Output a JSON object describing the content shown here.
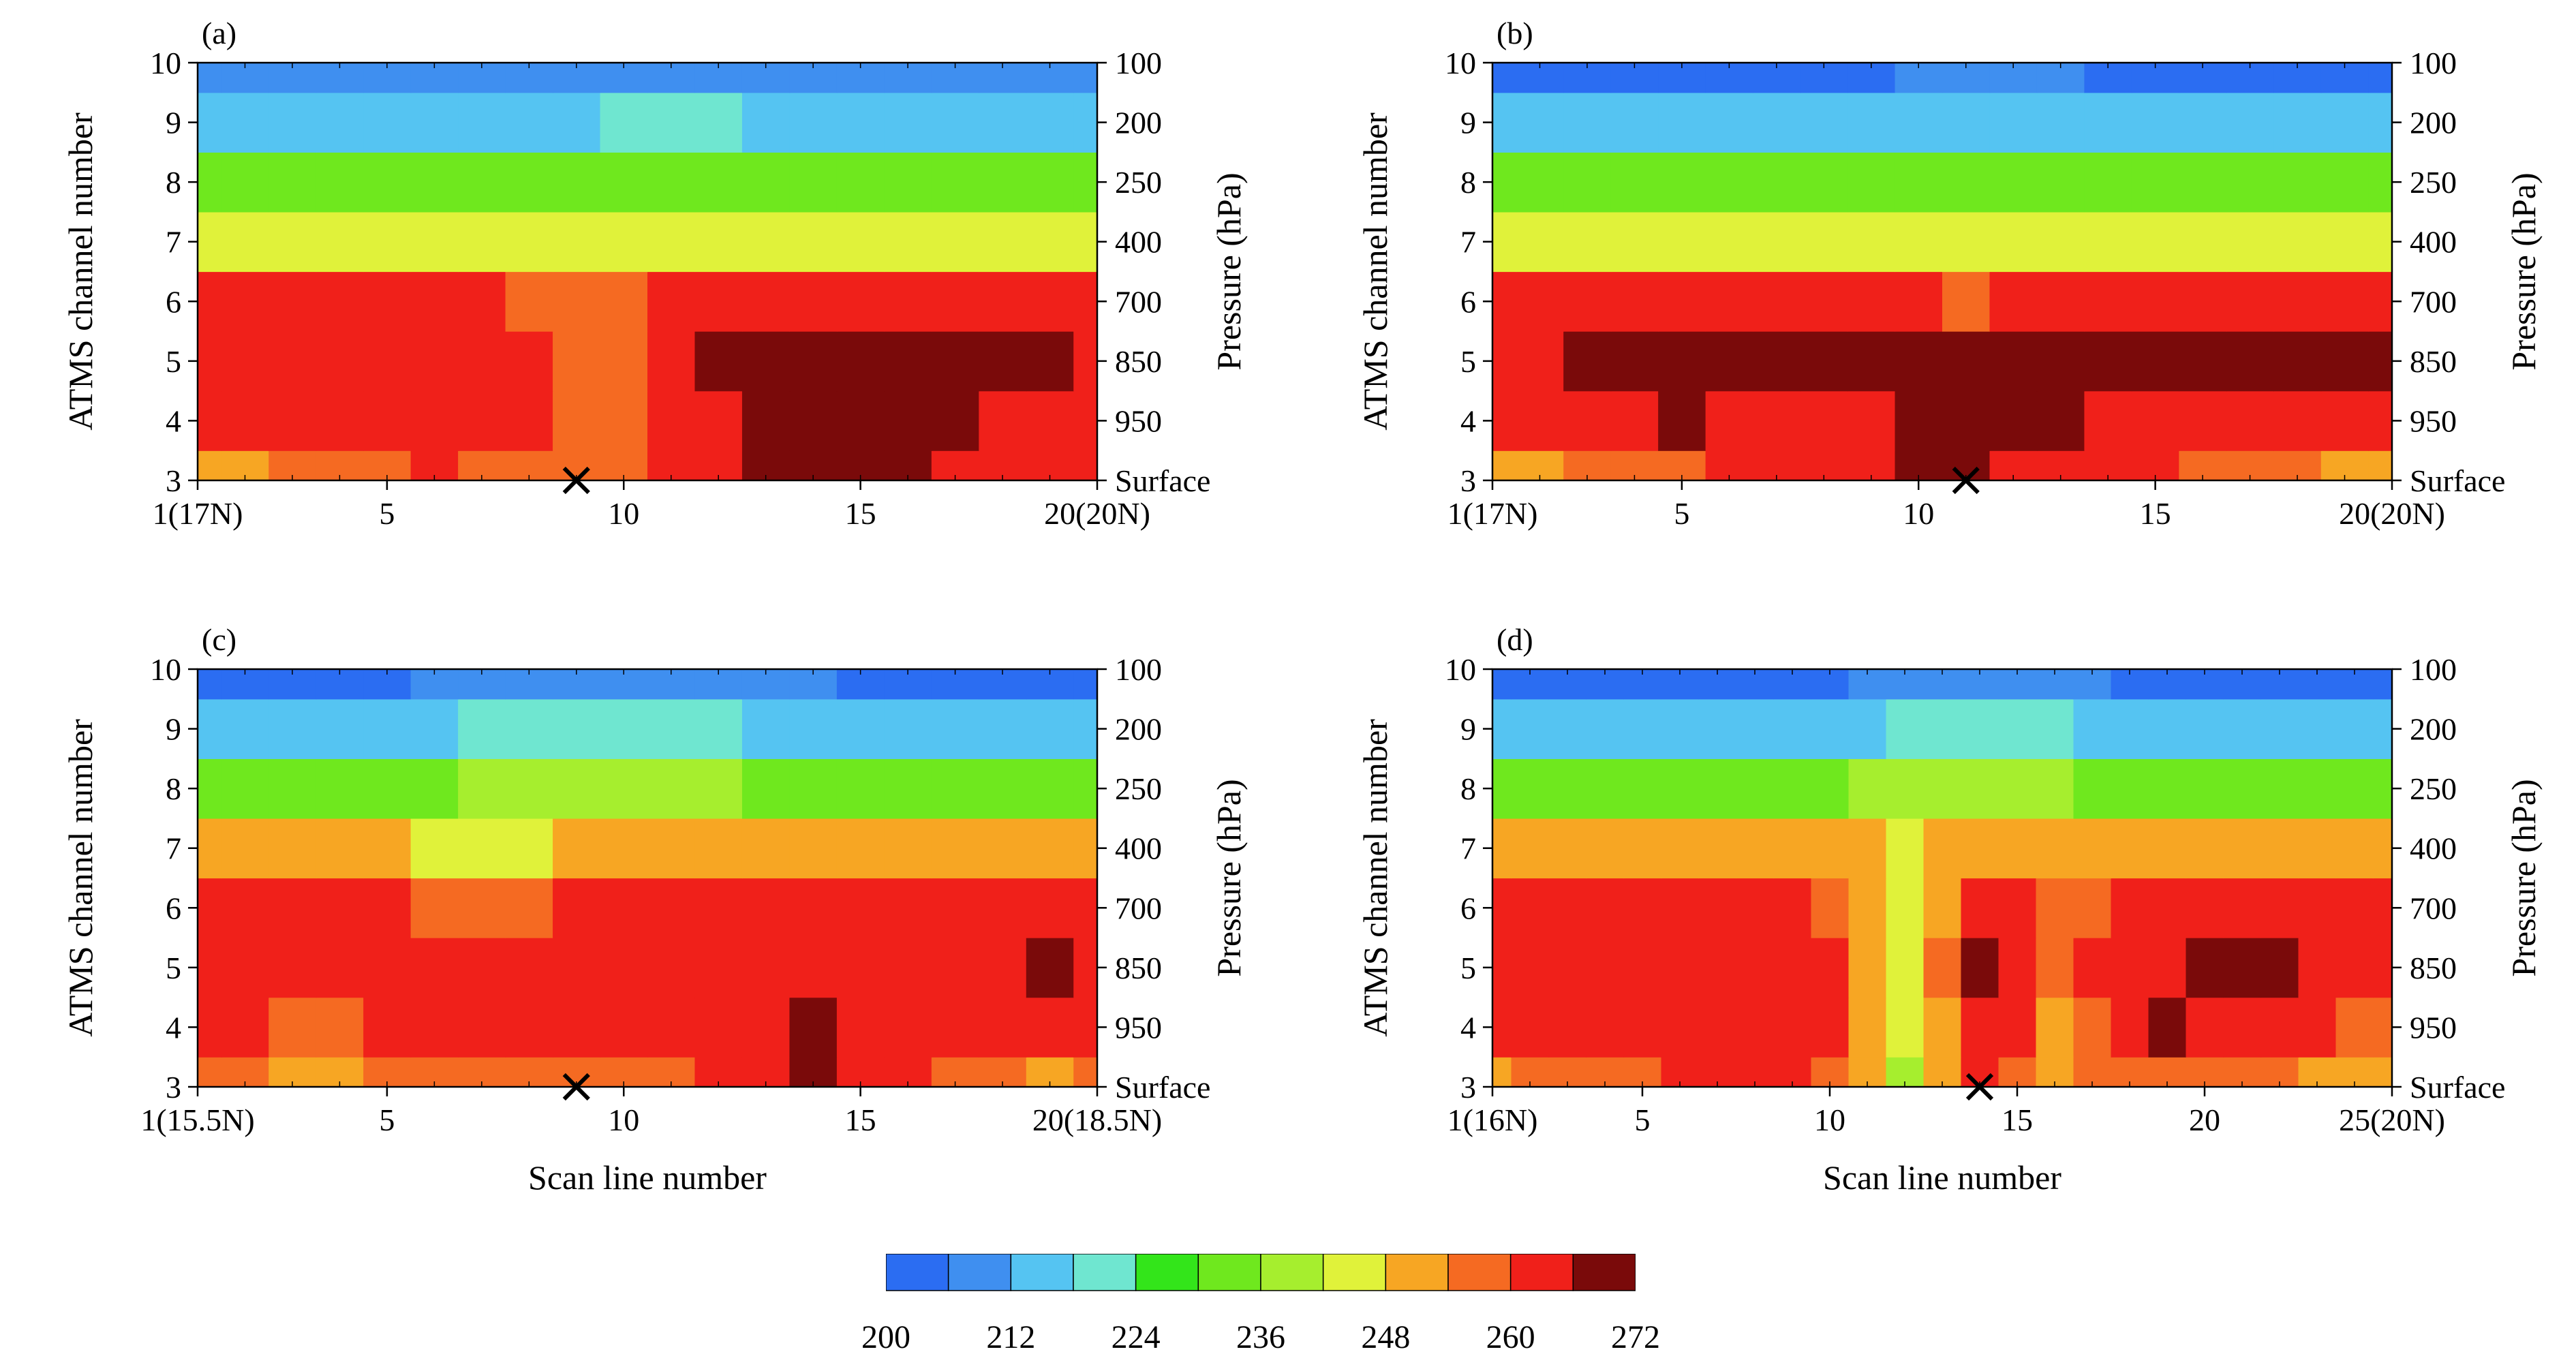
{
  "chart_data": [
    {
      "type": "heatmap",
      "panel_label": "(a)",
      "ylabel": "ATMS channel number",
      "y2label": "Pressure (hPa)",
      "xlabel": "",
      "x_tick_labels": [
        "1(17N)",
        "5",
        "10",
        "15",
        "20(20N)"
      ],
      "x_tick_values": [
        1,
        5,
        10,
        15,
        20
      ],
      "xlim": [
        1,
        20
      ],
      "y_tick_labels": [
        "3",
        "4",
        "5",
        "6",
        "7",
        "8",
        "9",
        "10"
      ],
      "ylim": [
        3,
        10
      ],
      "y2_tick_labels": [
        "Surface",
        "950",
        "850",
        "700",
        "400",
        "250",
        "200",
        "100"
      ],
      "center_marker_x": 9,
      "columns": [
        1,
        2,
        3,
        4,
        5,
        6,
        7,
        8,
        9,
        10,
        11,
        12,
        13,
        14,
        15,
        16,
        17,
        18,
        19,
        20
      ],
      "rows": [
        3,
        4,
        5,
        6,
        7,
        8,
        9,
        10
      ],
      "values": [
        [
          250,
          252,
          256,
          258,
          259,
          260,
          258,
          258,
          258,
          258,
          262,
          264,
          268,
          270,
          268,
          266,
          264,
          262,
          261,
          260
        ],
        [
          263,
          263,
          264,
          263,
          262,
          262,
          261,
          260,
          258,
          258,
          262,
          264,
          270,
          274,
          272,
          268,
          266,
          265,
          264,
          263
        ],
        [
          264,
          264,
          264,
          264,
          264,
          264,
          263,
          261,
          259,
          259,
          264,
          266,
          268,
          270,
          272,
          272,
          272,
          272,
          270,
          264
        ],
        [
          260,
          260,
          260,
          260,
          260,
          260,
          260,
          258,
          254,
          254,
          260,
          261,
          262,
          262,
          262,
          262,
          262,
          262,
          262,
          262
        ],
        [
          246,
          246,
          246,
          245,
          245,
          245,
          245,
          245,
          245,
          246,
          246,
          246,
          246,
          246,
          246,
          246,
          246,
          246,
          246,
          246
        ],
        [
          232,
          232,
          231,
          231,
          231,
          231,
          231,
          231,
          231,
          232,
          233,
          232,
          232,
          232,
          232,
          232,
          232,
          232,
          232,
          232
        ],
        [
          216,
          216,
          216,
          216,
          216,
          216,
          216,
          216,
          217,
          218,
          218,
          218,
          217,
          217,
          216,
          216,
          216,
          216,
          216,
          216
        ],
        [
          206,
          206,
          206,
          206,
          206,
          206,
          206,
          206,
          207,
          208,
          208,
          207,
          207,
          206,
          206,
          206,
          206,
          206,
          206,
          206
        ]
      ]
    },
    {
      "type": "heatmap",
      "panel_label": "(b)",
      "ylabel": "ATMS channel number",
      "y2label": "Pressure (hPa)",
      "xlabel": "",
      "x_tick_labels": [
        "1(17N)",
        "5",
        "10",
        "15",
        "20(20N)"
      ],
      "x_tick_values": [
        1,
        5,
        10,
        15,
        20
      ],
      "xlim": [
        1,
        20
      ],
      "y_tick_labels": [
        "3",
        "4",
        "5",
        "6",
        "7",
        "8",
        "9",
        "10"
      ],
      "ylim": [
        3,
        10
      ],
      "y2_tick_labels": [
        "Surface",
        "950",
        "850",
        "700",
        "400",
        "250",
        "200",
        "100"
      ],
      "center_marker_x": 11,
      "columns": [
        1,
        2,
        3,
        4,
        5,
        6,
        7,
        8,
        9,
        10,
        11,
        12,
        13,
        14,
        15,
        16,
        17,
        18,
        19,
        20
      ],
      "rows": [
        3,
        4,
        5,
        6,
        7,
        8,
        9,
        10
      ],
      "values": [
        [
          248,
          250,
          254,
          256,
          258,
          262,
          262,
          262,
          264,
          270,
          268,
          264,
          264,
          264,
          262,
          256,
          254,
          254,
          252,
          252
        ],
        [
          260,
          262,
          263,
          264,
          266,
          264,
          264,
          264,
          265,
          270,
          268,
          266,
          266,
          265,
          264,
          262,
          260,
          260,
          262,
          260
        ],
        [
          264,
          265,
          268,
          272,
          268,
          266,
          266,
          266,
          266,
          266,
          266,
          266,
          266,
          266,
          266,
          266,
          266,
          268,
          272,
          266
        ],
        [
          262,
          262,
          262,
          262,
          262,
          262,
          262,
          262,
          262,
          260,
          258,
          260,
          262,
          262,
          262,
          262,
          262,
          262,
          262,
          262
        ],
        [
          246,
          246,
          246,
          246,
          246,
          246,
          246,
          246,
          246,
          246,
          247,
          246,
          246,
          246,
          246,
          246,
          246,
          246,
          246,
          246
        ],
        [
          232,
          232,
          232,
          232,
          232,
          232,
          232,
          232,
          233,
          233,
          234,
          233,
          233,
          232,
          232,
          232,
          232,
          232,
          232,
          232
        ],
        [
          214,
          214,
          214,
          214,
          214,
          214,
          214,
          214,
          214,
          215,
          216,
          215,
          215,
          215,
          214,
          214,
          214,
          214,
          214,
          214
        ],
        [
          205,
          205,
          205,
          205,
          205,
          205,
          205,
          205,
          205,
          206,
          206,
          206,
          206,
          205,
          205,
          205,
          205,
          205,
          205,
          205
        ]
      ]
    },
    {
      "type": "heatmap",
      "panel_label": "(c)",
      "ylabel": "ATMS channel number",
      "y2label": "Pressure (hPa)",
      "xlabel": "Scan line number",
      "x_tick_labels": [
        "1(15.5N)",
        "5",
        "10",
        "15",
        "20(18.5N)"
      ],
      "x_tick_values": [
        1,
        5,
        10,
        15,
        20
      ],
      "xlim": [
        1,
        20
      ],
      "y_tick_labels": [
        "3",
        "4",
        "5",
        "6",
        "7",
        "8",
        "9",
        "10"
      ],
      "ylim": [
        3,
        10
      ],
      "y2_tick_labels": [
        "Surface",
        "950",
        "850",
        "700",
        "400",
        "250",
        "200",
        "100"
      ],
      "center_marker_x": 9,
      "columns": [
        1,
        2,
        3,
        4,
        5,
        6,
        7,
        8,
        9,
        10,
        11,
        12,
        13,
        14,
        15,
        16,
        17,
        18,
        19,
        20
      ],
      "rows": [
        3,
        4,
        5,
        6,
        7,
        8,
        9,
        10
      ],
      "values": [
        [
          256,
          254,
          250,
          250,
          254,
          258,
          258,
          258,
          258,
          258,
          258,
          260,
          260,
          268,
          262,
          262,
          258,
          256,
          252,
          254
        ],
        [
          262,
          260,
          258,
          258,
          260,
          260,
          260,
          260,
          262,
          262,
          260,
          262,
          264,
          270,
          264,
          264,
          262,
          260,
          262,
          260
        ],
        [
          264,
          264,
          264,
          263,
          260,
          260,
          260,
          260,
          264,
          264,
          262,
          264,
          264,
          264,
          264,
          264,
          264,
          264,
          268,
          264
        ],
        [
          260,
          262,
          262,
          262,
          260,
          258,
          256,
          258,
          262,
          262,
          260,
          260,
          260,
          260,
          260,
          260,
          260,
          262,
          262,
          260
        ],
        [
          248,
          248,
          248,
          248,
          248,
          247,
          246,
          247,
          250,
          250,
          248,
          248,
          248,
          248,
          248,
          248,
          248,
          248,
          248,
          248
        ],
        [
          232,
          232,
          232,
          232,
          233,
          234,
          236,
          238,
          240,
          240,
          238,
          236,
          234,
          233,
          232,
          232,
          232,
          232,
          232,
          232
        ],
        [
          216,
          216,
          216,
          216,
          216,
          217,
          218,
          219,
          220,
          220,
          219,
          218,
          217,
          216,
          216,
          216,
          216,
          216,
          216,
          216
        ],
        [
          204,
          204,
          204,
          205,
          205,
          206,
          207,
          208,
          209,
          209,
          208,
          207,
          206,
          206,
          205,
          205,
          205,
          205,
          205,
          205
        ]
      ]
    },
    {
      "type": "heatmap",
      "panel_label": "(d)",
      "ylabel": "ATMS channel number",
      "y2label": "Pressure (hPa)",
      "xlabel": "Scan line number",
      "x_tick_labels": [
        "1(16N)",
        "5",
        "10",
        "15",
        "20",
        "25(20N)"
      ],
      "x_tick_values": [
        1,
        5,
        10,
        15,
        20,
        25
      ],
      "xlim": [
        1,
        25
      ],
      "y_tick_labels": [
        "3",
        "4",
        "5",
        "6",
        "7",
        "8",
        "9",
        "10"
      ],
      "ylim": [
        3,
        10
      ],
      "y2_tick_labels": [
        "Surface",
        "950",
        "850",
        "700",
        "400",
        "250",
        "200",
        "100"
      ],
      "center_marker_x": 14,
      "columns": [
        1,
        2,
        3,
        4,
        5,
        6,
        7,
        8,
        9,
        10,
        11,
        12,
        13,
        14,
        15,
        16,
        17,
        18,
        19,
        20,
        21,
        22,
        23,
        24,
        25
      ],
      "rows": [
        3,
        4,
        5,
        6,
        7,
        8,
        9,
        10
      ],
      "values": [
        [
          252,
          254,
          256,
          258,
          258,
          260,
          260,
          260,
          260,
          258,
          250,
          240,
          250,
          260,
          258,
          250,
          254,
          256,
          258,
          258,
          256,
          254,
          252,
          250,
          250
        ],
        [
          260,
          262,
          262,
          262,
          262,
          262,
          262,
          262,
          262,
          260,
          250,
          244,
          252,
          264,
          262,
          252,
          258,
          262,
          266,
          262,
          262,
          262,
          260,
          258,
          258
        ],
        [
          264,
          264,
          264,
          264,
          264,
          264,
          264,
          264,
          264,
          262,
          252,
          246,
          254,
          268,
          264,
          254,
          262,
          264,
          264,
          268,
          270,
          268,
          264,
          264,
          264
        ],
        [
          262,
          262,
          262,
          262,
          262,
          262,
          262,
          260,
          260,
          258,
          250,
          246,
          252,
          262,
          260,
          254,
          258,
          260,
          262,
          262,
          262,
          262,
          262,
          262,
          262
        ],
        [
          250,
          250,
          250,
          250,
          250,
          250,
          250,
          250,
          250,
          250,
          248,
          244,
          248,
          250,
          250,
          250,
          250,
          250,
          250,
          250,
          250,
          250,
          250,
          250,
          250
        ],
        [
          234,
          234,
          234,
          234,
          234,
          234,
          234,
          234,
          234,
          235,
          236,
          238,
          240,
          240,
          238,
          236,
          235,
          234,
          234,
          234,
          234,
          234,
          234,
          234,
          234
        ],
        [
          216,
          216,
          216,
          216,
          216,
          216,
          216,
          216,
          216,
          216,
          217,
          218,
          220,
          221,
          220,
          218,
          217,
          216,
          216,
          216,
          216,
          216,
          216,
          216,
          216
        ],
        [
          205,
          205,
          205,
          205,
          205,
          205,
          205,
          205,
          205,
          205,
          206,
          207,
          209,
          210,
          209,
          207,
          206,
          205,
          205,
          205,
          205,
          205,
          205,
          205,
          205
        ]
      ]
    }
  ],
  "colorbar": {
    "levels": [
      200,
      204,
      208,
      212,
      216,
      220,
      224,
      228,
      232,
      236,
      240,
      244,
      248,
      252,
      256,
      260,
      264,
      268,
      272
    ],
    "tick_labels": [
      "200",
      "212",
      "224",
      "236",
      "248",
      "260",
      "272"
    ],
    "colors": [
      "#2b6df2",
      "#3f8ff0",
      "#55c4f2",
      "#6fe6d0",
      "#33e51a",
      "#6fe81e",
      "#a6ee2e",
      "#e0f23a",
      "#f7a623",
      "#f56a22",
      "#f0201a",
      "#7a0a0a"
    ]
  }
}
